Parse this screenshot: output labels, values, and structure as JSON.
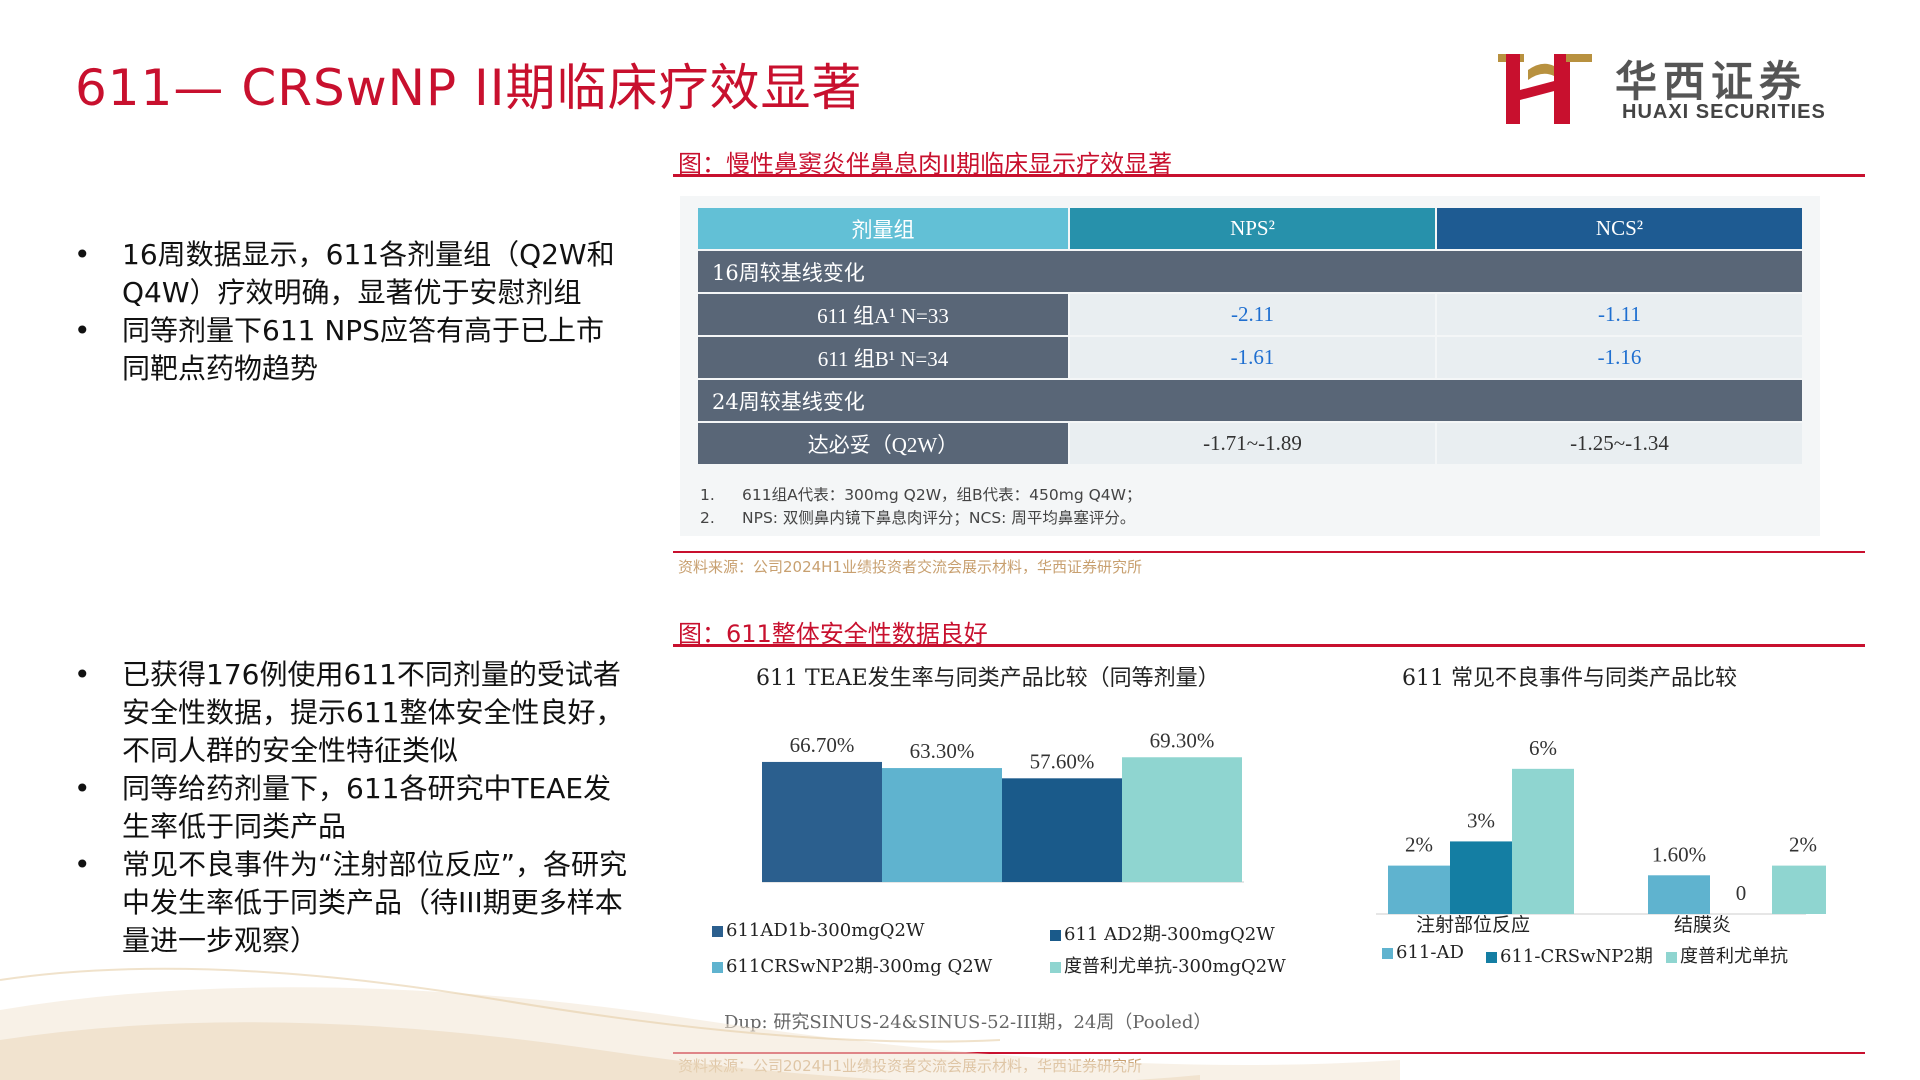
{
  "slide": {
    "title": "611— CRSwNP II期临床疗效显著",
    "logo_cn": "华西证券",
    "logo_en": "HUAXI SECURITIES"
  },
  "bullets_top": [
    "16周数据显示，611各剂量组（Q2W和Q4W）疗效明确，显著优于安慰剂组",
    "同等剂量下611 NPS应答有高于已上市同靶点药物趋势"
  ],
  "bullets_bottom": [
    "已获得176例使用611不同剂量的受试者安全性数据，提示611整体安全性良好，不同人群的安全性特征类似",
    "同等给药剂量下，611各研究中TEAE发生率低于同类产品",
    "常见不良事件为“注射部位反应”，各研究中发生率低于同类产品（待III期更多样本量进一步观察）"
  ],
  "figure1": {
    "caption": "图：慢性鼻窦炎伴鼻息肉II期临床显示疗效显著",
    "source": "资料来源：公司2024H1业绩投资者交流会展示材料，华西证券研究所",
    "table": {
      "header": [
        "剂量组",
        "NPS²",
        "NCS²"
      ],
      "section16": "16周较基线变化",
      "rows16": [
        [
          "611 组A¹   N=33",
          "-2.11",
          "-1.11"
        ],
        [
          "611 组B¹   N=34",
          "-1.61",
          "-1.16"
        ]
      ],
      "section24": "24周较基线变化",
      "rows24": [
        [
          "达必妥（Q2W）",
          "-1.71~-1.89",
          "-1.25~-1.34"
        ]
      ],
      "footnotes": [
        {
          "num": "1.",
          "text": "611组A代表：300mg Q2W，组B代表：450mg Q4W；"
        },
        {
          "num": "2.",
          "text": "NPS: 双侧鼻内镜下鼻息肉评分；NCS: 周平均鼻塞评分。"
        }
      ]
    }
  },
  "figure2": {
    "caption": "图：611整体安全性数据良好",
    "source": "资料来源：公司2024H1业绩投资者交流会展示材料，华西证券研究所",
    "note": "Dup: 研究SINUS-24&SINUS-52-III期，24周（Pooled）"
  },
  "chart_data": [
    {
      "type": "bar",
      "title": "611 TEAE发生率与同类产品比较（同等剂量）",
      "categories": [
        "611AD1b-300mgQ2W",
        "611CRSwNP2期-300mg Q2W",
        "611 AD2期-300mgQ2W",
        "度普利尤单抗-300mgQ2W"
      ],
      "values": [
        66.7,
        63.3,
        57.6,
        69.3
      ],
      "labels": [
        "66.70%",
        "63.30%",
        "57.60%",
        "69.30%"
      ],
      "colors": [
        "#2b5f8e",
        "#5fb3cf",
        "#1a5a8a",
        "#8fd5d0"
      ],
      "legend": [
        "611AD1b-300mgQ2W",
        "611 AD2期-300mgQ2W",
        "611CRSwNP2期-300mg Q2W",
        "度普利尤单抗-300mgQ2W"
      ],
      "ylim": [
        0,
        100
      ]
    },
    {
      "type": "bar",
      "title": "611 常见不良事件与同类产品比较",
      "categories": [
        "注射部位反应",
        "结膜炎"
      ],
      "series": [
        {
          "name": "611-AD",
          "values": [
            2,
            1.6
          ],
          "labels": [
            "2%",
            "1.60%"
          ],
          "color": "#5fb3cf"
        },
        {
          "name": "611-CRSwNP2期",
          "values": [
            3,
            0
          ],
          "labels": [
            "3%",
            "0"
          ],
          "color": "#147ea3"
        },
        {
          "name": "度普利尤单抗",
          "values": [
            6,
            2
          ],
          "labels": [
            "6%",
            "2%"
          ],
          "color": "#8fd5d0"
        }
      ],
      "ylim": [
        0,
        7
      ]
    }
  ]
}
